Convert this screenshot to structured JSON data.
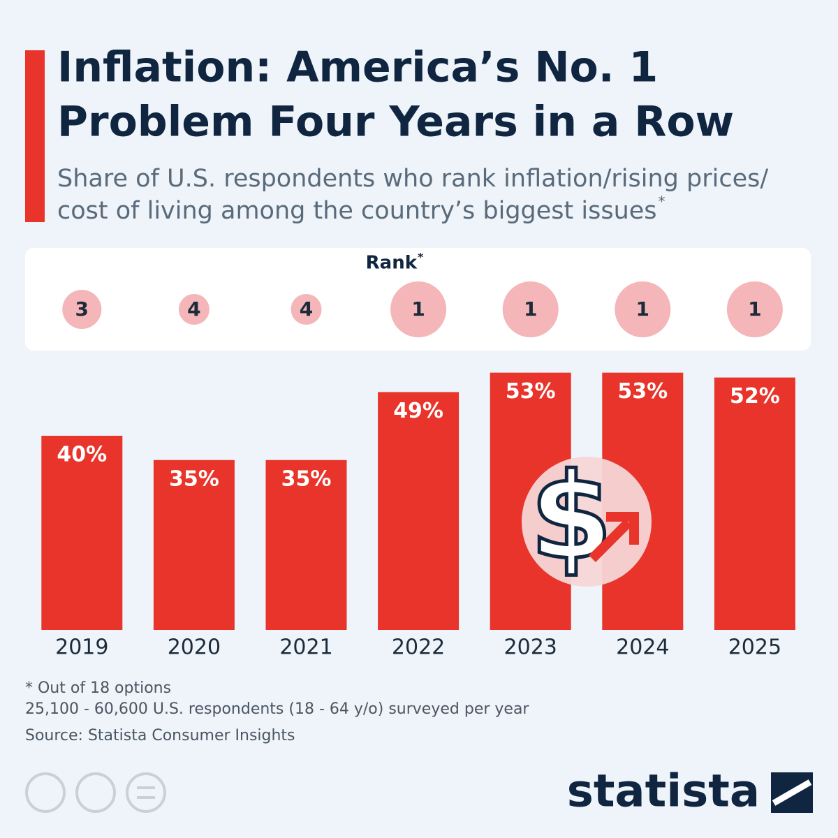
{
  "chart_data": {
    "type": "bar",
    "title": [
      "Inflation: America’s No. 1",
      "Problem Four Years in a Row"
    ],
    "subtitle": [
      "Share of U.S. respondents who rank inflation/rising prices/",
      "cost of living among the country’s biggest issues"
    ],
    "subtitle_mark": "*",
    "rank_label": "Rank",
    "rank_label_mark": "*",
    "categories": [
      "2019",
      "2020",
      "2021",
      "2022",
      "2023",
      "2024",
      "2025"
    ],
    "values": [
      40,
      35,
      35,
      49,
      53,
      53,
      52
    ],
    "value_labels": [
      "40%",
      "35%",
      "35%",
      "49%",
      "53%",
      "53%",
      "52%"
    ],
    "ranks": [
      3,
      4,
      4,
      1,
      1,
      1,
      1
    ],
    "color": "#e8342a",
    "rank_color": "#f4b6b8",
    "notes": [
      "* Out of 18 options",
      "25,100 - 60,600 U.S. respondents (18 - 64 y/o) surveyed per year"
    ],
    "source": "Source: Statista Consumer Insights",
    "brand": "statista"
  }
}
